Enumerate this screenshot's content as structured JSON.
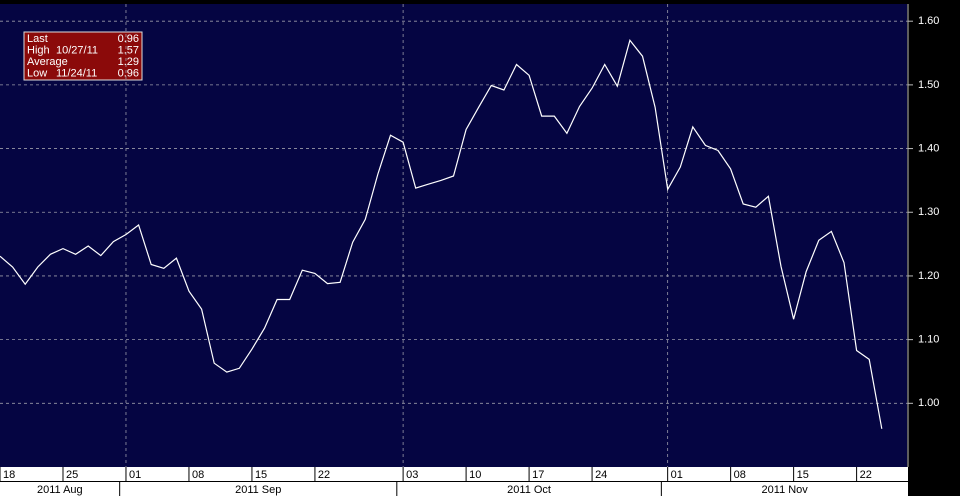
{
  "chart_data": {
    "type": "line",
    "x": [
      "2011-08-18",
      "2011-08-19",
      "2011-08-22",
      "2011-08-23",
      "2011-08-24",
      "2011-08-25",
      "2011-08-26",
      "2011-08-29",
      "2011-08-30",
      "2011-08-31",
      "2011-09-01",
      "2011-09-02",
      "2011-09-05",
      "2011-09-06",
      "2011-09-07",
      "2011-09-08",
      "2011-09-09",
      "2011-09-12",
      "2011-09-13",
      "2011-09-14",
      "2011-09-15",
      "2011-09-16",
      "2011-09-19",
      "2011-09-20",
      "2011-09-21",
      "2011-09-22",
      "2011-09-23",
      "2011-09-26",
      "2011-09-27",
      "2011-09-28",
      "2011-09-29",
      "2011-09-30",
      "2011-10-03",
      "2011-10-04",
      "2011-10-05",
      "2011-10-06",
      "2011-10-07",
      "2011-10-10",
      "2011-10-11",
      "2011-10-12",
      "2011-10-13",
      "2011-10-14",
      "2011-10-17",
      "2011-10-18",
      "2011-10-19",
      "2011-10-20",
      "2011-10-21",
      "2011-10-24",
      "2011-10-25",
      "2011-10-26",
      "2011-10-27",
      "2011-10-28",
      "2011-10-31",
      "2011-11-01",
      "2011-11-02",
      "2011-11-03",
      "2011-11-04",
      "2011-11-07",
      "2011-11-08",
      "2011-11-09",
      "2011-11-10",
      "2011-11-11",
      "2011-11-14",
      "2011-11-15",
      "2011-11-16",
      "2011-11-17",
      "2011-11-18",
      "2011-11-21",
      "2011-11-22",
      "2011-11-23",
      "2011-11-24"
    ],
    "series": [
      {
        "color": "#ffffff",
        "values": [
          1.231,
          1.214,
          1.187,
          1.214,
          1.234,
          1.243,
          1.234,
          1.247,
          1.232,
          1.254,
          1.265,
          1.28,
          1.218,
          1.212,
          1.228,
          1.176,
          1.148,
          1.063,
          1.049,
          1.055,
          1.085,
          1.118,
          1.163,
          1.163,
          1.209,
          1.204,
          1.188,
          1.19,
          1.253,
          1.289,
          1.36,
          1.421,
          1.41,
          1.338,
          1.344,
          1.35,
          1.357,
          1.43,
          1.465,
          1.499,
          1.492,
          1.532,
          1.515,
          1.451,
          1.451,
          1.424,
          1.466,
          1.495,
          1.532,
          1.498,
          1.57,
          1.545,
          1.465,
          1.336,
          1.371,
          1.434,
          1.405,
          1.397,
          1.368,
          1.313,
          1.308,
          1.325,
          1.215,
          1.132,
          1.207,
          1.256,
          1.27,
          1.221,
          1.083,
          1.069,
          0.96
        ]
      }
    ],
    "ylim": [
      0.9,
      1.627
    ],
    "yticks": [
      {
        "value": 1,
        "label": "1.00"
      },
      {
        "value": 1.1,
        "label": "1.10"
      },
      {
        "value": 1.2,
        "label": "1.20"
      },
      {
        "value": 1.3,
        "label": "1.30"
      },
      {
        "value": 1.4,
        "label": "1.40"
      },
      {
        "value": 1.5,
        "label": "1.50"
      },
      {
        "value": 1.6,
        "label": "1.60"
      }
    ],
    "xticks": [
      {
        "value": "2011-08-18",
        "label": "18"
      },
      {
        "value": "2011-08-25",
        "label": "25"
      },
      {
        "value": "2011-09-01",
        "label": "01"
      },
      {
        "value": "2011-09-08",
        "label": "08"
      },
      {
        "value": "2011-09-15",
        "label": "15"
      },
      {
        "value": "2011-09-22",
        "label": "22"
      },
      {
        "value": "2011-10-03",
        "label": "03"
      },
      {
        "value": "2011-10-10",
        "label": "10"
      },
      {
        "value": "2011-10-17",
        "label": "17"
      },
      {
        "value": "2011-10-24",
        "label": "24"
      },
      {
        "value": "2011-11-01",
        "label": "01"
      },
      {
        "value": "2011-11-08",
        "label": "08"
      },
      {
        "value": "2011-11-15",
        "label": "15"
      },
      {
        "value": "2011-11-22",
        "label": "22"
      }
    ],
    "x_groups": [
      "2011 Aug",
      "2011 Sep",
      "2011 Oct",
      "2011 Nov"
    ],
    "grid": true,
    "stats": [
      {
        "label": "Last",
        "value": 0.96
      },
      {
        "label": "High",
        "date": "10/27/11",
        "value": 1.57
      },
      {
        "label": "Average",
        "value": 1.29
      },
      {
        "label": "Low",
        "date": "11/24/11",
        "value": 0.96
      }
    ]
  }
}
